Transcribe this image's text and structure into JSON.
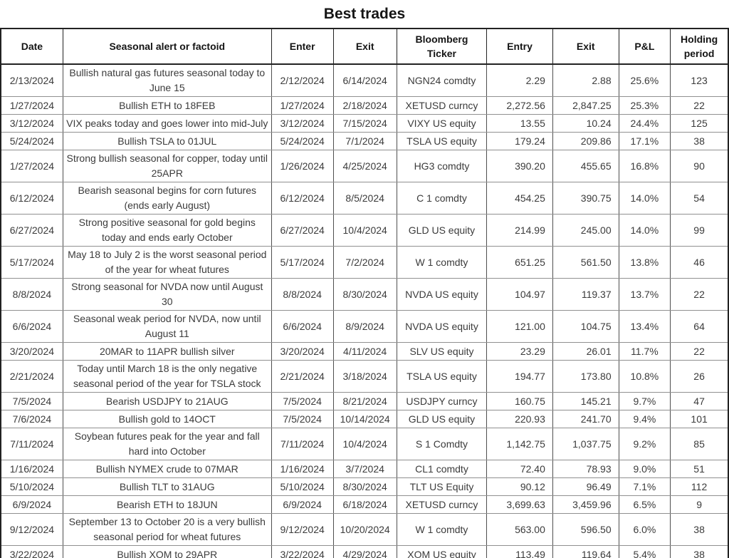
{
  "title": "Best trades",
  "chart_data": {
    "type": "table",
    "title": "Best trades",
    "columns": [
      "Date",
      "Seasonal alert or factoid",
      "Enter",
      "Exit",
      "Bloomberg Ticker",
      "Entry",
      "Exit",
      "P&L",
      "Holding period"
    ],
    "rows": [
      [
        "2/13/2024",
        "Bullish natural gas futures seasonal today to June 15",
        "2/12/2024",
        "6/14/2024",
        "NGN24 comdty",
        "2.29",
        "2.88",
        "25.6%",
        "123"
      ],
      [
        "1/27/2024",
        "Bullish ETH to 18FEB",
        "1/27/2024",
        "2/18/2024",
        "XETUSD curncy",
        "2,272.56",
        "2,847.25",
        "25.3%",
        "22"
      ],
      [
        "3/12/2024",
        "VIX peaks today and goes lower into mid-July",
        "3/12/2024",
        "7/15/2024",
        "VIXY US equity",
        "13.55",
        "10.24",
        "24.4%",
        "125"
      ],
      [
        "5/24/2024",
        "Bullish TSLA to 01JUL",
        "5/24/2024",
        "7/1/2024",
        "TSLA US equity",
        "179.24",
        "209.86",
        "17.1%",
        "38"
      ],
      [
        "1/27/2024",
        "Strong bullish seasonal for copper, today until 25APR",
        "1/26/2024",
        "4/25/2024",
        "HG3 comdty",
        "390.20",
        "455.65",
        "16.8%",
        "90"
      ],
      [
        "6/12/2024",
        "Bearish seasonal begins for corn futures (ends early August)",
        "6/12/2024",
        "8/5/2024",
        "C 1 comdty",
        "454.25",
        "390.75",
        "14.0%",
        "54"
      ],
      [
        "6/27/2024",
        "Strong positive seasonal for gold begins today and ends early October",
        "6/27/2024",
        "10/4/2024",
        "GLD US equity",
        "214.99",
        "245.00",
        "14.0%",
        "99"
      ],
      [
        "5/17/2024",
        "May 18 to July 2 is the worst seasonal period of the year for wheat futures",
        "5/17/2024",
        "7/2/2024",
        "W 1 comdty",
        "651.25",
        "561.50",
        "13.8%",
        "46"
      ],
      [
        "8/8/2024",
        "Strong seasonal for NVDA now until August 30",
        "8/8/2024",
        "8/30/2024",
        "NVDA US equity",
        "104.97",
        "119.37",
        "13.7%",
        "22"
      ],
      [
        "6/6/2024",
        "Seasonal weak period for NVDA, now until August 11",
        "6/6/2024",
        "8/9/2024",
        "NVDA US equity",
        "121.00",
        "104.75",
        "13.4%",
        "64"
      ],
      [
        "3/20/2024",
        "20MAR to 11APR bullish silver",
        "3/20/2024",
        "4/11/2024",
        "SLV US equity",
        "23.29",
        "26.01",
        "11.7%",
        "22"
      ],
      [
        "2/21/2024",
        "Today until March 18 is the only negative seasonal period of the year for TSLA stock",
        "2/21/2024",
        "3/18/2024",
        "TSLA US equity",
        "194.77",
        "173.80",
        "10.8%",
        "26"
      ],
      [
        "7/5/2024",
        "Bearish USDJPY to 21AUG",
        "7/5/2024",
        "8/21/2024",
        "USDJPY curncy",
        "160.75",
        "145.21",
        "9.7%",
        "47"
      ],
      [
        "7/6/2024",
        "Bullish gold to 14OCT",
        "7/5/2024",
        "10/14/2024",
        "GLD US equity",
        "220.93",
        "241.70",
        "9.4%",
        "101"
      ],
      [
        "7/11/2024",
        "Soybean futures peak for the year and fall hard into October",
        "7/11/2024",
        "10/4/2024",
        "S 1 Comdty",
        "1,142.75",
        "1,037.75",
        "9.2%",
        "85"
      ],
      [
        "1/16/2024",
        "Bullish NYMEX crude to 07MAR",
        "1/16/2024",
        "3/7/2024",
        "CL1 comdty",
        "72.40",
        "78.93",
        "9.0%",
        "51"
      ],
      [
        "5/10/2024",
        "Bullish TLT to 31AUG",
        "5/10/2024",
        "8/30/2024",
        "TLT US Equity",
        "90.12",
        "96.49",
        "7.1%",
        "112"
      ],
      [
        "6/9/2024",
        "Bearish ETH to 18JUN",
        "6/9/2024",
        "6/18/2024",
        "XETUSD curncy",
        "3,699.63",
        "3,459.96",
        "6.5%",
        "9"
      ],
      [
        "9/12/2024",
        "September 13 to October 20 is a very bullish seasonal period for wheat futures",
        "9/12/2024",
        "10/20/2024",
        "W 1 comdty",
        "563.00",
        "596.50",
        "6.0%",
        "38"
      ],
      [
        "3/22/2024",
        "Bullish XOM to 29APR",
        "3/22/2024",
        "4/29/2024",
        "XOM US equity",
        "113.49",
        "119.64",
        "5.4%",
        "38"
      ]
    ]
  }
}
